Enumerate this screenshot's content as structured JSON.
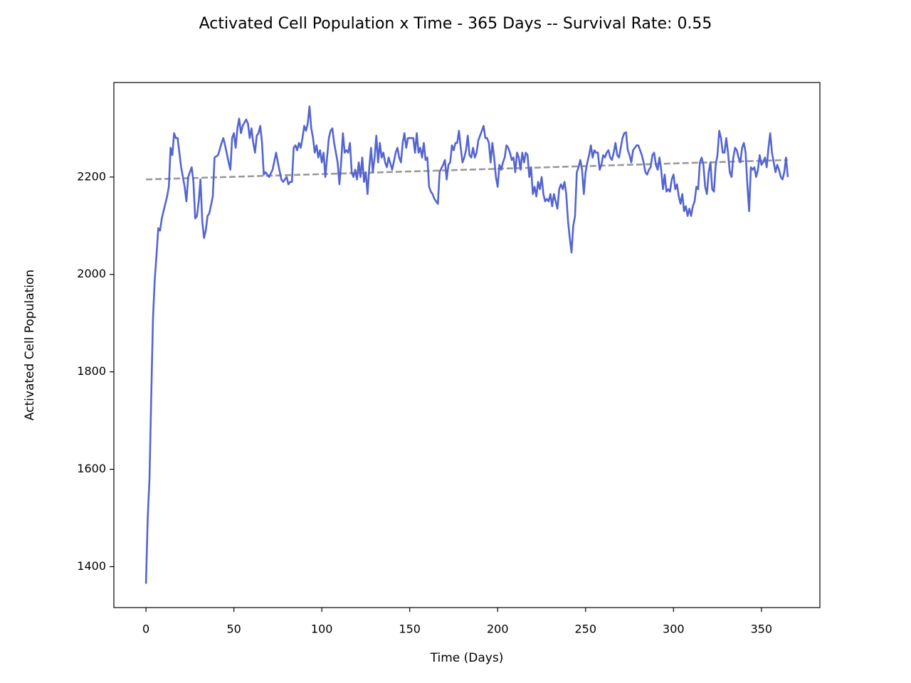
{
  "chart_data": {
    "type": "line",
    "title": "Activated Cell Population x Time - 365 Days -- Survival Rate: 0.55",
    "x_label": "Time (Days)",
    "y_label": "Activated Cell Population",
    "xlim": [
      -18.25,
      383.25
    ],
    "ylim": [
      1316,
      2394
    ],
    "xticks": [
      0,
      50,
      100,
      150,
      200,
      250,
      300,
      350
    ],
    "yticks": [
      1400,
      1600,
      1800,
      2000,
      2200
    ],
    "grid": false,
    "color": "#5465d0",
    "x": [
      0,
      1,
      2,
      3,
      4,
      5,
      6,
      7,
      8,
      9,
      10,
      12,
      13,
      14,
      15,
      16,
      17,
      18,
      20,
      22,
      23,
      24,
      26,
      27,
      28,
      29,
      30,
      31,
      32,
      33,
      34,
      35,
      36,
      38,
      39,
      41,
      43,
      44,
      45,
      47,
      48,
      49,
      50,
      51,
      52,
      53,
      54,
      55,
      57,
      58,
      59,
      60,
      61,
      62,
      63,
      64,
      65,
      66,
      67,
      68,
      70,
      72,
      74,
      75,
      77,
      78,
      80,
      81,
      82,
      83,
      84,
      85,
      86,
      87,
      88,
      89,
      90,
      91,
      92,
      93,
      94,
      95,
      96,
      97,
      98,
      99,
      100,
      101,
      102,
      103,
      104,
      105,
      106,
      107,
      108,
      109,
      110,
      111,
      112,
      113,
      114,
      115,
      116,
      117,
      118,
      119,
      120,
      121,
      122,
      123,
      124,
      125,
      126,
      127,
      128,
      129,
      130,
      131,
      132,
      133,
      134,
      135,
      136,
      137,
      138,
      139,
      140,
      141,
      142,
      143,
      144,
      145,
      146,
      147,
      148,
      149,
      150,
      151,
      152,
      153,
      154,
      155,
      156,
      157,
      158,
      159,
      160,
      161,
      162,
      163,
      164,
      165,
      166,
      167,
      168,
      169,
      170,
      171,
      172,
      173,
      174,
      175,
      176,
      177,
      178,
      179,
      180,
      181,
      182,
      183,
      184,
      185,
      186,
      187,
      188,
      189,
      190,
      191,
      192,
      193,
      194,
      195,
      196,
      197,
      198,
      199,
      200,
      201,
      202,
      203,
      204,
      205,
      206,
      207,
      208,
      209,
      210,
      211,
      212,
      213,
      214,
      215,
      216,
      217,
      218,
      219,
      220,
      221,
      222,
      223,
      224,
      225,
      226,
      227,
      228,
      229,
      230,
      231,
      232,
      233,
      234,
      235,
      236,
      237,
      238,
      239,
      240,
      241,
      242,
      243,
      244,
      245,
      246,
      247,
      248,
      249,
      250,
      251,
      252,
      253,
      254,
      255,
      256,
      257,
      258,
      259,
      260,
      261,
      262,
      263,
      264,
      265,
      266,
      267,
      268,
      269,
      270,
      271,
      272,
      273,
      274,
      275,
      276,
      277,
      278,
      279,
      280,
      281,
      282,
      283,
      284,
      285,
      286,
      287,
      288,
      289,
      290,
      291,
      292,
      293,
      294,
      295,
      296,
      297,
      298,
      299,
      300,
      301,
      302,
      303,
      304,
      305,
      306,
      307,
      308,
      309,
      310,
      311,
      312,
      313,
      314,
      315,
      316,
      317,
      318,
      319,
      320,
      321,
      322,
      323,
      324,
      325,
      326,
      327,
      328,
      329,
      330,
      331,
      332,
      333,
      334,
      335,
      336,
      337,
      338,
      339,
      340,
      341,
      342,
      343,
      344,
      345,
      346,
      347,
      348,
      349,
      350,
      351,
      352,
      353,
      354,
      355,
      356,
      357,
      358,
      359,
      360,
      361,
      362,
      363,
      364,
      365
    ],
    "values": [
      1365,
      1500,
      1580,
      1750,
      1910,
      1990,
      2040,
      2095,
      2090,
      2115,
      2130,
      2160,
      2180,
      2260,
      2245,
      2290,
      2280,
      2280,
      2220,
      2180,
      2150,
      2200,
      2220,
      2190,
      2115,
      2120,
      2150,
      2195,
      2110,
      2075,
      2090,
      2120,
      2125,
      2160,
      2240,
      2245,
      2270,
      2280,
      2265,
      2230,
      2215,
      2280,
      2290,
      2260,
      2300,
      2320,
      2290,
      2305,
      2318,
      2310,
      2280,
      2300,
      2270,
      2250,
      2285,
      2290,
      2305,
      2270,
      2205,
      2210,
      2200,
      2215,
      2250,
      2230,
      2195,
      2190,
      2200,
      2185,
      2190,
      2190,
      2260,
      2265,
      2255,
      2270,
      2260,
      2280,
      2305,
      2295,
      2310,
      2345,
      2300,
      2280,
      2250,
      2265,
      2240,
      2255,
      2230,
      2250,
      2200,
      2240,
      2280,
      2295,
      2300,
      2270,
      2250,
      2230,
      2185,
      2230,
      2290,
      2250,
      2255,
      2250,
      2270,
      2210,
      2200,
      2215,
      2195,
      2230,
      2200,
      2240,
      2190,
      2210,
      2165,
      2220,
      2260,
      2210,
      2240,
      2285,
      2230,
      2270,
      2240,
      2250,
      2230,
      2220,
      2240,
      2228,
      2215,
      2232,
      2250,
      2260,
      2240,
      2230,
      2270,
      2290,
      2260,
      2280,
      2280,
      2280,
      2280,
      2250,
      2290,
      2250,
      2260,
      2240,
      2270,
      2235,
      2240,
      2180,
      2170,
      2165,
      2155,
      2150,
      2145,
      2210,
      2218,
      2225,
      2235,
      2195,
      2225,
      2230,
      2265,
      2255,
      2270,
      2270,
      2295,
      2260,
      2230,
      2240,
      2255,
      2285,
      2245,
      2240,
      2260,
      2240,
      2250,
      2275,
      2285,
      2295,
      2305,
      2280,
      2280,
      2270,
      2230,
      2270,
      2240,
      2200,
      2180,
      2225,
      2215,
      2230,
      2240,
      2265,
      2260,
      2250,
      2235,
      2240,
      2210,
      2250,
      2240,
      2215,
      2250,
      2230,
      2250,
      2245,
      2200,
      2220,
      2165,
      2180,
      2160,
      2190,
      2175,
      2200,
      2165,
      2150,
      2155,
      2150,
      2165,
      2140,
      2165,
      2150,
      2135,
      2175,
      2185,
      2175,
      2190,
      2165,
      2110,
      2075,
      2045,
      2100,
      2120,
      2210,
      2220,
      2235,
      2215,
      2165,
      2210,
      2230,
      2245,
      2265,
      2240,
      2255,
      2250,
      2250,
      2215,
      2225,
      2245,
      2240,
      2250,
      2255,
      2240,
      2235,
      2250,
      2270,
      2245,
      2240,
      2260,
      2280,
      2290,
      2292,
      2255,
      2245,
      2230,
      2255,
      2260,
      2265,
      2265,
      2255,
      2245,
      2230,
      2210,
      2205,
      2215,
      2220,
      2245,
      2250,
      2225,
      2215,
      2240,
      2215,
      2175,
      2205,
      2170,
      2175,
      2170,
      2195,
      2205,
      2175,
      2185,
      2160,
      2145,
      2165,
      2130,
      2140,
      2120,
      2135,
      2120,
      2140,
      2150,
      2180,
      2175,
      2230,
      2240,
      2225,
      2180,
      2165,
      2210,
      2230,
      2175,
      2170,
      2225,
      2245,
      2295,
      2280,
      2250,
      2250,
      2280,
      2250,
      2210,
      2200,
      2240,
      2260,
      2255,
      2240,
      2230,
      2260,
      2270,
      2250,
      2185,
      2130,
      2220,
      2215,
      2220,
      2200,
      2215,
      2245,
      2225,
      2230,
      2240,
      2220,
      2260,
      2290,
      2250,
      2230,
      2210,
      2225,
      2215,
      2200,
      2195,
      2210,
      2240,
      2200
    ],
    "trend": {
      "x": [
        0,
        365
      ],
      "values": [
        2195,
        2235
      ],
      "color": "#999999",
      "dashed": true
    }
  }
}
